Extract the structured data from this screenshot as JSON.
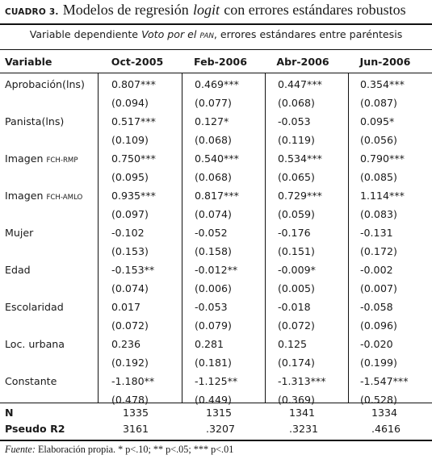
{
  "caption": {
    "label": "CUADRO 3.",
    "title_before": "Modelos de regresión",
    "title_italic": "logit",
    "title_after": "con errores estándares robustos"
  },
  "banner": {
    "part1": "Variable dependiente",
    "part2_italic": "Voto por el",
    "part3_smallcaps": "pan",
    "part4": ", errores estándares entre paréntesis"
  },
  "columns": [
    "Variable",
    "Oct-2005",
    "Feb-2006",
    "Abr-2006",
    "Jun-2006"
  ],
  "rows": [
    {
      "label": "Aprobación(lns)",
      "label_sc": "",
      "coef": [
        "0.807***",
        "0.469***",
        "0.447***",
        "0.354***"
      ],
      "se": [
        "(0.094)",
        "(0.077)",
        "(0.068)",
        "(0.087)"
      ]
    },
    {
      "label": "Panista(lns)",
      "label_sc": "",
      "coef": [
        "0.517***",
        "0.127*",
        "-0.053",
        "0.095*"
      ],
      "se": [
        "(0.109)",
        "(0.068)",
        "(0.119)",
        "(0.056)"
      ]
    },
    {
      "label": "Imagen",
      "label_sc": "fch-rmp",
      "coef": [
        "0.750***",
        "0.540***",
        "0.534***",
        "0.790***"
      ],
      "se": [
        "(0.095)",
        "(0.068)",
        "(0.065)",
        "(0.085)"
      ]
    },
    {
      "label": "Imagen",
      "label_sc": "fch-amlo",
      "coef": [
        "0.935***",
        "0.817***",
        "0.729***",
        "1.114***"
      ],
      "se": [
        "(0.097)",
        "(0.074)",
        "(0.059)",
        "(0.083)"
      ]
    },
    {
      "label": "Mujer",
      "label_sc": "",
      "coef": [
        "-0.102",
        "-0.052",
        "-0.176",
        "-0.131"
      ],
      "se": [
        "(0.153)",
        "(0.158)",
        "(0.151)",
        "(0.172)"
      ]
    },
    {
      "label": "Edad",
      "label_sc": "",
      "coef": [
        "-0.153**",
        "-0.012**",
        "-0.009*",
        "-0.002"
      ],
      "se": [
        "(0.074)",
        "(0.006)",
        "(0.005)",
        "(0.007)"
      ]
    },
    {
      "label": "Escolaridad",
      "label_sc": "",
      "coef": [
        "0.017",
        "-0.053",
        "-0.018",
        "-0.058"
      ],
      "se": [
        "(0.072)",
        "(0.079)",
        "(0.072)",
        "(0.096)"
      ]
    },
    {
      "label": "Loc. urbana",
      "label_sc": "",
      "coef": [
        "0.236",
        "0.281",
        "0.125",
        "-0.020"
      ],
      "se": [
        "(0.192)",
        "(0.181)",
        "(0.174)",
        "(0.199)"
      ]
    },
    {
      "label": "Constante",
      "label_sc": "",
      "coef": [
        "-1.180**",
        "-1.125**",
        "-1.313***",
        "-1.547***"
      ],
      "se": [
        "(0.478)",
        "(0.449)",
        "(0.369)",
        "(0.528)"
      ]
    }
  ],
  "summary": [
    {
      "label": "N",
      "values": [
        "1335",
        "1315",
        "1341",
        "1334"
      ]
    },
    {
      "label": "Pseudo R2",
      "values": [
        "3161",
        ".3207",
        ".3231",
        ".4616"
      ]
    }
  ],
  "footnote": {
    "source_label": "Fuente:",
    "source_text": "Elaboración propia.",
    "significance": "* p<.10; ** p<.05; *** p<.01"
  }
}
